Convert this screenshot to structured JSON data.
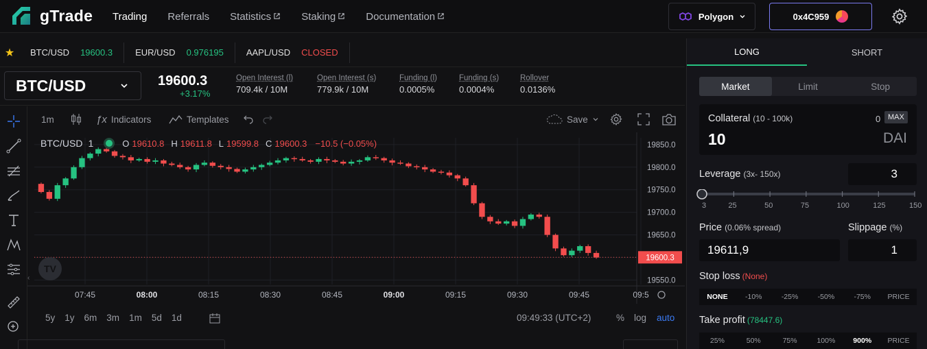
{
  "app": {
    "name": "gTrade"
  },
  "nav": {
    "trading": "Trading",
    "referrals": "Referrals",
    "statistics": "Statistics",
    "staking": "Staking",
    "documentation": "Documentation"
  },
  "network": {
    "label": "Polygon"
  },
  "wallet": {
    "address": "0x4C959"
  },
  "favorites": [
    {
      "pair": "BTC/USD",
      "price": "19600.3",
      "status": "up"
    },
    {
      "pair": "EUR/USD",
      "price": "0.976195",
      "status": "up"
    },
    {
      "pair": "AAPL/USD",
      "price": "CLOSED",
      "status": "closed"
    }
  ],
  "market": {
    "pair": "BTC/USD",
    "price": "19600.3",
    "change": "+3.17%",
    "stats": [
      {
        "label": "Open Interest (l)",
        "value": "709.4k / 10M",
        "tone": "neutral"
      },
      {
        "label": "Open Interest (s)",
        "value": "779.9k / 10M",
        "tone": "neutral"
      },
      {
        "label": "Funding (l)",
        "value": "0.0005%",
        "tone": "green"
      },
      {
        "label": "Funding (s)",
        "value": "0.0004%",
        "tone": "red"
      },
      {
        "label": "Rollover",
        "value": "0.0136%",
        "tone": "red"
      }
    ]
  },
  "chart_toolbar": {
    "interval": "1m",
    "indicators": "Indicators",
    "templates": "Templates",
    "save": "Save"
  },
  "legend": {
    "symbol": "BTC/USD",
    "interval": "1",
    "o_label": "O",
    "o": "19610.8",
    "h_label": "H",
    "h": "19611.8",
    "l_label": "L",
    "l": "19599.8",
    "c_label": "C",
    "c": "19600.3",
    "chg": "−10.5 (−0.05%)"
  },
  "chart_data": {
    "type": "candlestick",
    "symbol": "BTC/USD",
    "ylim": [
      19540,
      19865
    ],
    "y_ticks": [
      "19850.0",
      "19800.0",
      "19750.0",
      "19700.0",
      "19650.0",
      "19600.0",
      "19550.0"
    ],
    "x_ticks": [
      "07:45",
      "08:00",
      "08:15",
      "08:30",
      "08:45",
      "09:00",
      "09:15",
      "09:30",
      "09:45",
      "09:5"
    ],
    "last_price": "19600.3",
    "closes": [
      19745,
      19730,
      19760,
      19775,
      19800,
      19820,
      19830,
      19840,
      19835,
      19825,
      19822,
      19815,
      19818,
      19812,
      19815,
      19808,
      19805,
      19800,
      19795,
      19805,
      19810,
      19803,
      19800,
      19796,
      19790,
      19795,
      19800,
      19805,
      19810,
      19815,
      19820,
      19818,
      19815,
      19812,
      19818,
      19815,
      19812,
      19808,
      19812,
      19815,
      19822,
      19820,
      19815,
      19810,
      19808,
      19802,
      19800,
      19795,
      19790,
      19788,
      19782,
      19775,
      19760,
      19720,
      19690,
      19680,
      19675,
      19680,
      19670,
      19685,
      19695,
      19690,
      19650,
      19620,
      19605,
      19615,
      19625,
      19610,
      19600
    ]
  },
  "range_bar": {
    "ranges": [
      "5y",
      "1y",
      "6m",
      "3m",
      "1m",
      "5d",
      "1d"
    ],
    "time": "09:49:33 (UTC+2)",
    "pct": "%",
    "log": "log",
    "auto": "auto"
  },
  "order": {
    "long": "LONG",
    "short": "SHORT",
    "types": [
      "Market",
      "Limit",
      "Stop"
    ],
    "collateral_label": "Collateral",
    "collateral_range": "(10 - 100k)",
    "collateral_value": "10",
    "collateral_balance": "0",
    "max": "MAX",
    "currency": "DAI",
    "leverage_label": "Leverage",
    "leverage_range": "(3x- 150x)",
    "leverage_value": "3",
    "leverage_ticks": [
      "3",
      "25",
      "50",
      "75",
      "100",
      "125",
      "150"
    ],
    "price_label": "Price",
    "price_spread": "(0.06% spread)",
    "price_value": "19611,9",
    "slippage_label": "Slippage",
    "slippage_unit": "(%)",
    "slippage_value": "1",
    "stoploss_label": "Stop loss",
    "stoploss_value": "(None)",
    "stoploss_options": [
      "NONE",
      "-10%",
      "-25%",
      "-50%",
      "-75%",
      "PRICE"
    ],
    "takeprofit_label": "Take profit",
    "takeprofit_value": "(78447.6)",
    "takeprofit_options": [
      "25%",
      "50%",
      "75%",
      "100%",
      "900%",
      "PRICE"
    ]
  },
  "colors": {
    "up": "#26c281",
    "down": "#f24d4d",
    "accent": "#7b7bf0",
    "bg": "#121214"
  }
}
